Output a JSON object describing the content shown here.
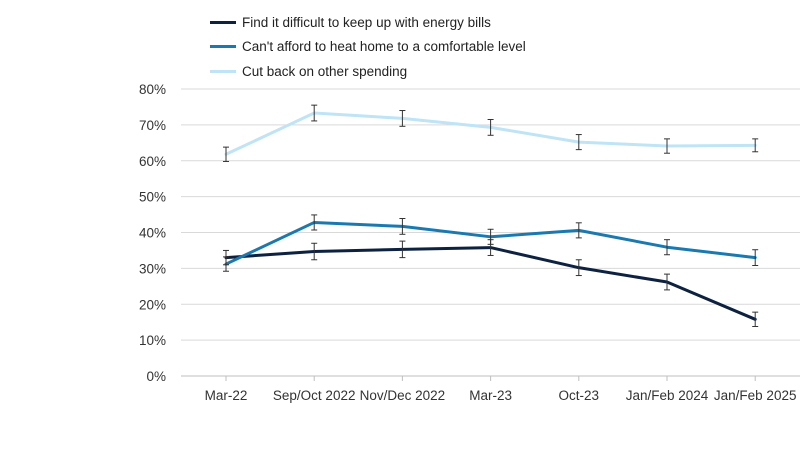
{
  "chart_data": {
    "type": "line",
    "title": "",
    "xlabel": "",
    "ylabel": "",
    "ylim": [
      0,
      80
    ],
    "yticks": [
      "0%",
      "10%",
      "20%",
      "30%",
      "40%",
      "50%",
      "60%",
      "70%",
      "80%"
    ],
    "categories": [
      "Mar-22",
      "Sep/Oct 2022",
      "Nov/Dec 2022",
      "Mar-23",
      "Oct-23",
      "Jan/Feb 2024",
      "Jan/Feb 2025"
    ],
    "legend_position": "top",
    "grid": true,
    "series": [
      {
        "name": "Find it difficult to keep up with energy bills",
        "color": "#0d2240",
        "values": [
          33,
          34.7,
          35.3,
          35.8,
          30.2,
          26.2,
          15.8
        ],
        "err": [
          2,
          2.3,
          2.3,
          2.2,
          2.2,
          2.2,
          2.0
        ]
      },
      {
        "name": "Can't afford to heat home to a comfortable level",
        "color": "#1a7ab0",
        "values": [
          31.2,
          42.8,
          41.7,
          38.8,
          40.6,
          35.9,
          33.0
        ],
        "err": [
          2,
          2.1,
          2.2,
          2.1,
          2.1,
          2.1,
          2.2
        ]
      },
      {
        "name": "Cut back on other spending",
        "color": "#bfe4f5",
        "values": [
          61.8,
          73.3,
          71.8,
          69.3,
          65.2,
          64.1,
          64.3
        ],
        "err": [
          2,
          2.2,
          2.2,
          2.2,
          2.1,
          2.0,
          1.8
        ]
      }
    ]
  }
}
